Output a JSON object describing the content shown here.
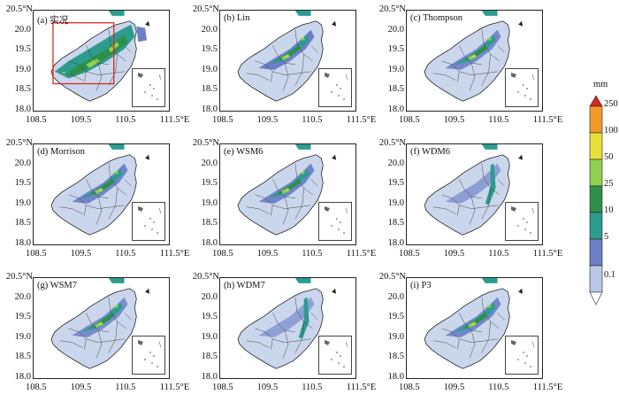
{
  "lat_ticks": [
    "20.5°N",
    "20.0",
    "19.5",
    "19.0",
    "18.5",
    "18.0"
  ],
  "lon_ticks": [
    "108.5",
    "109.5",
    "110.5",
    "111.5°E"
  ],
  "panels": [
    {
      "label": "(a) 实况",
      "highlight_box": true
    },
    {
      "label": "(b) Lin"
    },
    {
      "label": "(c) Thompson"
    },
    {
      "label": "(d) Morrison"
    },
    {
      "label": "(e) WSM6"
    },
    {
      "label": "(f) WDM6"
    },
    {
      "label": "(g) WSM7"
    },
    {
      "label": "(h) WDM7"
    },
    {
      "label": "(i) P3"
    }
  ],
  "colorbar": {
    "unit": "mm",
    "levels": [
      "0.1",
      "5",
      "10",
      "25",
      "50",
      "100",
      "250"
    ],
    "colors": [
      "#b8c8e6",
      "#6b7fc7",
      "#2c9c8f",
      "#2f8f4a",
      "#8fd14f",
      "#e8e03a",
      "#f39a2c",
      "#d7261e"
    ]
  }
}
